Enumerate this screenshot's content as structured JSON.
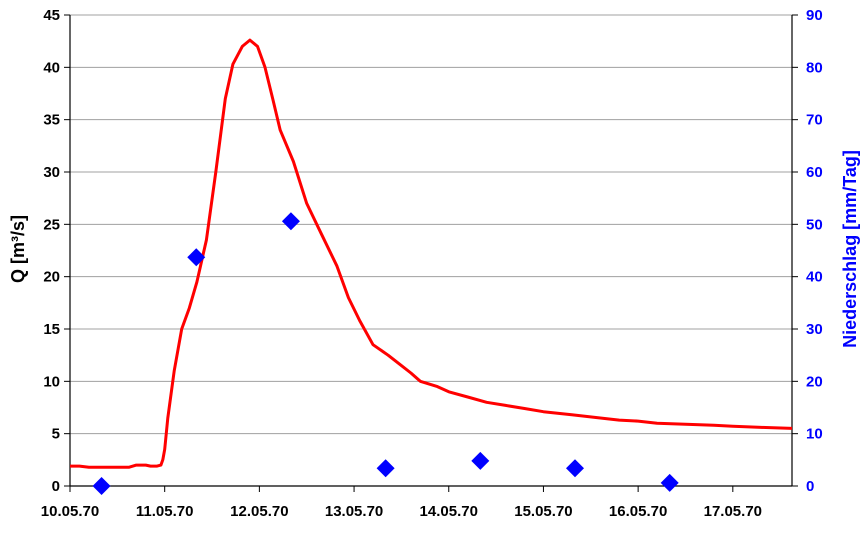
{
  "chart_data": {
    "type": "line",
    "colors": {
      "discharge": "#ff0000",
      "precipitation": "#0000ff",
      "grid": "#a0a0a0",
      "axis": "#000000"
    },
    "axes": {
      "y_left": {
        "label": "Q [m³/s]",
        "min": 0,
        "max": 45,
        "ticks": [
          "0",
          "5",
          "10",
          "15",
          "20",
          "25",
          "30",
          "35",
          "40",
          "45"
        ]
      },
      "y_right": {
        "label": "Niederschlag [mm/Tag]",
        "min": 0,
        "max": 90,
        "ticks": [
          "0",
          "10",
          "20",
          "30",
          "40",
          "50",
          "60",
          "70",
          "80",
          "90"
        ]
      },
      "x": {
        "min": "1970-05-10",
        "max": "1970-05-17T15:00",
        "tick_labels": [
          "10.05.70",
          "11.05.70",
          "12.05.70",
          "13.05.70",
          "14.05.70",
          "15.05.70",
          "16.05.70",
          "17.05.70"
        ]
      }
    },
    "grid": "horizontal",
    "legend": "none",
    "series": [
      {
        "type": "line",
        "axis": "left",
        "points": [
          [
            "1970-05-10T00:00",
            1.9
          ],
          [
            "1970-05-10T02:24",
            1.9
          ],
          [
            "1970-05-10T04:48",
            1.8
          ],
          [
            "1970-05-10T08:24",
            1.8
          ],
          [
            "1970-05-10T12:00",
            1.8
          ],
          [
            "1970-05-10T15:00",
            1.8
          ],
          [
            "1970-05-10T16:48",
            2.0
          ],
          [
            "1970-05-10T19:12",
            2.0
          ],
          [
            "1970-05-10T20:24",
            1.9
          ],
          [
            "1970-05-10T22:05",
            1.9
          ],
          [
            "1970-05-10T23:02",
            2.0
          ],
          [
            "1970-05-10T23:31",
            2.5
          ],
          [
            "1970-05-11T00:00",
            3.5
          ],
          [
            "1970-05-11T00:48",
            6.5
          ],
          [
            "1970-05-11T02:24",
            11.0
          ],
          [
            "1970-05-11T04:19",
            15.0
          ],
          [
            "1970-05-11T06:14",
            17.0
          ],
          [
            "1970-05-11T08:10",
            19.5
          ],
          [
            "1970-05-11T10:34",
            23.5
          ],
          [
            "1970-05-11T12:58",
            30.0
          ],
          [
            "1970-05-11T15:22",
            37.0
          ],
          [
            "1970-05-11T17:17",
            40.3
          ],
          [
            "1970-05-11T19:41",
            42.0
          ],
          [
            "1970-05-11T21:36",
            42.6
          ],
          [
            "1970-05-11T23:31",
            42.0
          ],
          [
            "1970-05-12T01:26",
            40.0
          ],
          [
            "1970-05-12T03:22",
            37.0
          ],
          [
            "1970-05-12T05:17",
            34.0
          ],
          [
            "1970-05-12T08:38",
            31.0
          ],
          [
            "1970-05-12T12:00",
            27.0
          ],
          [
            "1970-05-12T15:50",
            24.0
          ],
          [
            "1970-05-12T19:41",
            21.0
          ],
          [
            "1970-05-12T22:34",
            18.0
          ],
          [
            "1970-05-13T01:26",
            15.8
          ],
          [
            "1970-05-13T04:48",
            13.5
          ],
          [
            "1970-05-13T08:38",
            12.5
          ],
          [
            "1970-05-13T12:00",
            11.5
          ],
          [
            "1970-05-13T14:24",
            10.8
          ],
          [
            "1970-05-13T16:48",
            10.0
          ],
          [
            "1970-05-13T21:07",
            9.5
          ],
          [
            "1970-05-14T00:00",
            9.0
          ],
          [
            "1970-05-14T04:48",
            8.5
          ],
          [
            "1970-05-14T09:36",
            8.0
          ],
          [
            "1970-05-14T14:24",
            7.7
          ],
          [
            "1970-05-14T19:12",
            7.4
          ],
          [
            "1970-05-15T00:00",
            7.1
          ],
          [
            "1970-05-15T07:12",
            6.8
          ],
          [
            "1970-05-15T14:24",
            6.5
          ],
          [
            "1970-05-15T19:12",
            6.3
          ],
          [
            "1970-05-16T00:00",
            6.2
          ],
          [
            "1970-05-16T04:48",
            6.0
          ],
          [
            "1970-05-16T12:00",
            5.9
          ],
          [
            "1970-05-16T19:12",
            5.8
          ],
          [
            "1970-05-17T00:00",
            5.7
          ],
          [
            "1970-05-17T07:12",
            5.6
          ],
          [
            "1970-05-17T15:00",
            5.5
          ]
        ]
      },
      {
        "type": "scatter",
        "axis": "right",
        "marker": "diamond",
        "points": [
          [
            "1970-05-10T08:00",
            0
          ],
          [
            "1970-05-11T08:00",
            43.7
          ],
          [
            "1970-05-12T08:00",
            50.6
          ],
          [
            "1970-05-13T08:00",
            3.4
          ],
          [
            "1970-05-14T08:00",
            4.8
          ],
          [
            "1970-05-15T08:00",
            3.4
          ],
          [
            "1970-05-16T08:00",
            0.6
          ]
        ]
      }
    ]
  }
}
